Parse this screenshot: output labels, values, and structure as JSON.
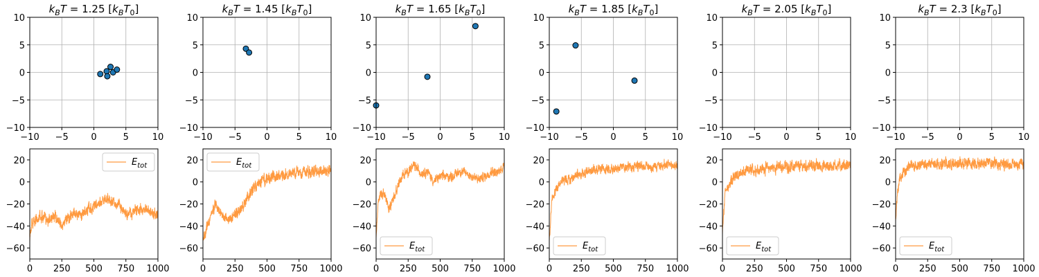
{
  "chart_data": [
    {
      "type": "scatter",
      "title_prefix": "k",
      "title_sub": "B",
      "title_mid": "T = 1.25 [k",
      "title_sub2": "B",
      "title_t": "T",
      "title_sub3": "0",
      "title_end": "]",
      "xlim": [
        -10,
        10
      ],
      "ylim": [
        -10,
        10
      ],
      "xticks": [
        "−10",
        "−5",
        "0",
        "5",
        "10"
      ],
      "yticks": [
        "−10",
        "−5",
        "0",
        "5",
        "10"
      ],
      "grid": true,
      "marker_color": "#1f77b4",
      "marker_edge": "#000000",
      "points": [
        [
          1.0,
          -0.3
        ],
        [
          2.0,
          0.2
        ],
        [
          2.1,
          -0.7
        ],
        [
          2.6,
          1.0
        ],
        [
          3.0,
          0.0
        ],
        [
          3.6,
          0.5
        ]
      ]
    },
    {
      "type": "scatter",
      "title_prefix": "k",
      "title_sub": "B",
      "title_mid": "T = 1.45 [k",
      "title_sub2": "B",
      "title_t": "T",
      "title_sub3": "0",
      "title_end": "]",
      "xlim": [
        -10,
        10
      ],
      "ylim": [
        -10,
        10
      ],
      "xticks": [
        "−10",
        "−5",
        "0",
        "5",
        "10"
      ],
      "yticks": [
        "−10",
        "−5",
        "0",
        "5",
        "10"
      ],
      "grid": true,
      "marker_color": "#1f77b4",
      "marker_edge": "#000000",
      "points": [
        [
          -3.3,
          4.3
        ],
        [
          -2.8,
          3.6
        ]
      ]
    },
    {
      "type": "scatter",
      "title_prefix": "k",
      "title_sub": "B",
      "title_mid": "T = 1.65 [k",
      "title_sub2": "B",
      "title_t": "T",
      "title_sub3": "0",
      "title_end": "]",
      "xlim": [
        -10,
        10
      ],
      "ylim": [
        -10,
        10
      ],
      "xticks": [
        "−10",
        "−5",
        "0",
        "5",
        "10"
      ],
      "yticks": [
        "−10",
        "−5",
        "0",
        "5",
        "10"
      ],
      "grid": true,
      "marker_color": "#1f77b4",
      "marker_edge": "#000000",
      "points": [
        [
          -10.0,
          -6.0
        ],
        [
          -2.0,
          -0.8
        ],
        [
          5.5,
          8.4
        ]
      ]
    },
    {
      "type": "scatter",
      "title_prefix": "k",
      "title_sub": "B",
      "title_mid": "T = 1.85 [k",
      "title_sub2": "B",
      "title_t": "T",
      "title_sub3": "0",
      "title_end": "]",
      "xlim": [
        -10,
        10
      ],
      "ylim": [
        -10,
        10
      ],
      "xticks": [
        "−10",
        "−5",
        "0",
        "5",
        "10"
      ],
      "yticks": [
        "−10",
        "−5",
        "0",
        "5",
        "10"
      ],
      "grid": true,
      "marker_color": "#1f77b4",
      "marker_edge": "#000000",
      "points": [
        [
          -8.9,
          -7.1
        ],
        [
          -5.9,
          4.9
        ],
        [
          3.3,
          -1.5
        ]
      ]
    },
    {
      "type": "scatter",
      "title_prefix": "k",
      "title_sub": "B",
      "title_mid": "T = 2.05 [k",
      "title_sub2": "B",
      "title_t": "T",
      "title_sub3": "0",
      "title_end": "]",
      "xlim": [
        -10,
        10
      ],
      "ylim": [
        -10,
        10
      ],
      "xticks": [
        "−10",
        "−5",
        "0",
        "5",
        "10"
      ],
      "yticks": [
        "−10",
        "−5",
        "0",
        "5",
        "10"
      ],
      "grid": true,
      "marker_color": "#1f77b4",
      "marker_edge": "#000000",
      "points": []
    },
    {
      "type": "scatter",
      "title_prefix": "k",
      "title_sub": "B",
      "title_mid": "T = 2.3 [k",
      "title_sub2": "B",
      "title_t": "T",
      "title_sub3": "0",
      "title_end": "]",
      "xlim": [
        -10,
        10
      ],
      "ylim": [
        -10,
        10
      ],
      "xticks": [
        "−10",
        "−5",
        "0",
        "5",
        "10"
      ],
      "yticks": [
        "−10",
        "−5",
        "0",
        "5",
        "10"
      ],
      "grid": true,
      "marker_color": "#1f77b4",
      "marker_edge": "#000000",
      "points": []
    },
    {
      "type": "line",
      "xlim": [
        0,
        1000
      ],
      "ylim": [
        -70,
        30
      ],
      "xticks": [
        "0",
        "250",
        "500",
        "750",
        "1000"
      ],
      "yticks": [
        "−60",
        "−40",
        "−20",
        "0",
        "20"
      ],
      "grid": false,
      "line_color": "#ff9a40",
      "legend": "upper right",
      "series": [
        {
          "name": "E",
          "name_sub": "tot",
          "keypoints": [
            [
              0,
              -50
            ],
            [
              10,
              -40
            ],
            [
              50,
              -35
            ],
            [
              100,
              -32
            ],
            [
              150,
              -35
            ],
            [
              200,
              -30
            ],
            [
              250,
              -40
            ],
            [
              300,
              -32
            ],
            [
              350,
              -28
            ],
            [
              400,
              -30
            ],
            [
              450,
              -25
            ],
            [
              500,
              -22
            ],
            [
              550,
              -18
            ],
            [
              600,
              -15
            ],
            [
              650,
              -18
            ],
            [
              700,
              -20
            ],
            [
              750,
              -30
            ],
            [
              800,
              -28
            ],
            [
              850,
              -25
            ],
            [
              900,
              -25
            ],
            [
              950,
              -28
            ],
            [
              1000,
              -30
            ]
          ],
          "noise": 7
        }
      ]
    },
    {
      "type": "line",
      "xlim": [
        0,
        1000
      ],
      "ylim": [
        -70,
        30
      ],
      "xticks": [
        "0",
        "250",
        "500",
        "750",
        "1000"
      ],
      "yticks": [
        "−60",
        "−40",
        "−20",
        "0",
        "20"
      ],
      "grid": false,
      "line_color": "#ff9a40",
      "legend": "upper left",
      "series": [
        {
          "name": "E",
          "name_sub": "tot",
          "keypoints": [
            [
              0,
              -55
            ],
            [
              20,
              -45
            ],
            [
              50,
              -35
            ],
            [
              100,
              -20
            ],
            [
              150,
              -30
            ],
            [
              200,
              -35
            ],
            [
              250,
              -30
            ],
            [
              300,
              -25
            ],
            [
              350,
              -15
            ],
            [
              400,
              -5
            ],
            [
              450,
              0
            ],
            [
              500,
              2
            ],
            [
              600,
              5
            ],
            [
              700,
              8
            ],
            [
              800,
              10
            ],
            [
              900,
              10
            ],
            [
              1000,
              10
            ]
          ],
          "noise": 7
        }
      ]
    },
    {
      "type": "line",
      "xlim": [
        0,
        1000
      ],
      "ylim": [
        -70,
        30
      ],
      "xticks": [
        "0",
        "250",
        "500",
        "750",
        "1000"
      ],
      "yticks": [
        "−60",
        "−40",
        "−20",
        "0",
        "20"
      ],
      "grid": false,
      "line_color": "#ff9a40",
      "legend": "lower left",
      "series": [
        {
          "name": "E",
          "name_sub": "tot",
          "keypoints": [
            [
              0,
              -50
            ],
            [
              20,
              -15
            ],
            [
              60,
              -10
            ],
            [
              100,
              -25
            ],
            [
              150,
              -10
            ],
            [
              200,
              5
            ],
            [
              250,
              10
            ],
            [
              300,
              15
            ],
            [
              350,
              8
            ],
            [
              400,
              10
            ],
            [
              450,
              0
            ],
            [
              500,
              5
            ],
            [
              600,
              5
            ],
            [
              650,
              10
            ],
            [
              700,
              8
            ],
            [
              750,
              5
            ],
            [
              800,
              2
            ],
            [
              850,
              5
            ],
            [
              900,
              10
            ],
            [
              950,
              8
            ],
            [
              1000,
              15
            ]
          ],
          "noise": 6
        }
      ]
    },
    {
      "type": "line",
      "xlim": [
        0,
        1000
      ],
      "ylim": [
        -70,
        30
      ],
      "xticks": [
        "0",
        "250",
        "500",
        "750",
        "1000"
      ],
      "yticks": [
        "−60",
        "−40",
        "−20",
        "0",
        "20"
      ],
      "grid": false,
      "line_color": "#ff9a40",
      "legend": "lower right",
      "series": [
        {
          "name": "E",
          "name_sub": "tot",
          "keypoints": [
            [
              0,
              -55
            ],
            [
              20,
              -15
            ],
            [
              60,
              -5
            ],
            [
              100,
              0
            ],
            [
              200,
              5
            ],
            [
              300,
              10
            ],
            [
              400,
              12
            ],
            [
              500,
              12
            ],
            [
              600,
              13
            ],
            [
              700,
              15
            ],
            [
              800,
              14
            ],
            [
              900,
              15
            ],
            [
              1000,
              15
            ]
          ],
          "noise": 6
        }
      ]
    },
    {
      "type": "line",
      "xlim": [
        0,
        1000
      ],
      "ylim": [
        -70,
        30
      ],
      "xticks": [
        "0",
        "250",
        "500",
        "750",
        "1000"
      ],
      "yticks": [
        "−60",
        "−40",
        "−20",
        "0",
        "20"
      ],
      "grid": false,
      "line_color": "#ff9a40",
      "legend": "lower left",
      "series": [
        {
          "name": "E",
          "name_sub": "tot",
          "keypoints": [
            [
              0,
              -45
            ],
            [
              20,
              -10
            ],
            [
              60,
              0
            ],
            [
              100,
              5
            ],
            [
              200,
              10
            ],
            [
              300,
              12
            ],
            [
              400,
              13
            ],
            [
              500,
              14
            ],
            [
              600,
              14
            ],
            [
              700,
              15
            ],
            [
              800,
              14
            ],
            [
              900,
              15
            ],
            [
              1000,
              15
            ]
          ],
          "noise": 7
        }
      ]
    },
    {
      "type": "line",
      "xlim": [
        0,
        1000
      ],
      "ylim": [
        -70,
        30
      ],
      "xticks": [
        "0",
        "250",
        "500",
        "750",
        "1000"
      ],
      "yticks": [
        "−60",
        "−40",
        "−20",
        "0",
        "20"
      ],
      "grid": false,
      "line_color": "#ff9a40",
      "legend": "lower left",
      "series": [
        {
          "name": "E",
          "name_sub": "tot",
          "keypoints": [
            [
              0,
              -35
            ],
            [
              15,
              -10
            ],
            [
              40,
              5
            ],
            [
              80,
              12
            ],
            [
              150,
              15
            ],
            [
              300,
              16
            ],
            [
              500,
              17
            ],
            [
              700,
              17
            ],
            [
              900,
              16
            ],
            [
              1000,
              18
            ]
          ],
          "noise": 7
        }
      ]
    }
  ]
}
